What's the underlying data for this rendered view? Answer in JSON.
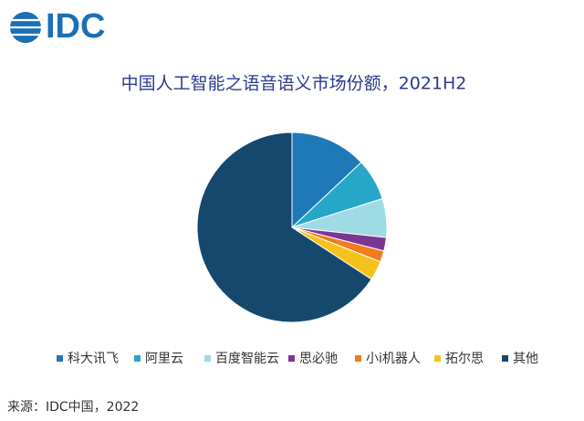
{
  "logo": "IDC",
  "chart_data": {
    "type": "pie",
    "title": "中国人工智能之语音语义市场份额，2021H2",
    "categories": [
      "科大讯飞",
      "阿里云",
      "百度智能云",
      "思必驰",
      "小i机器人",
      "拓尔思",
      "其他"
    ],
    "values": [
      13,
      7.1,
      6.6,
      2.3,
      1.9,
      3.3,
      65.8
    ],
    "colors": [
      "#1f78b8",
      "#27a7c7",
      "#9fdbe4",
      "#7d3593",
      "#f07c1f",
      "#f4c21a",
      "#16486e"
    ],
    "legend": "bottom"
  },
  "source": "来源：IDC中国，2022"
}
